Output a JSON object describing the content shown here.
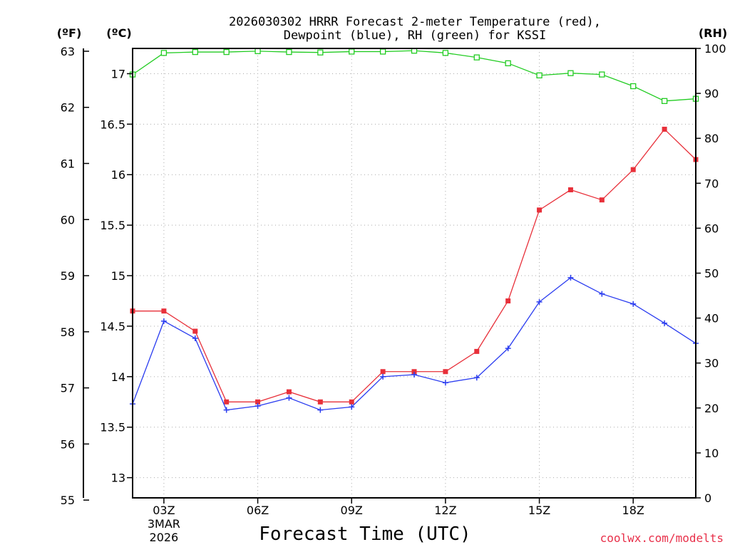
{
  "chart_data": {
    "type": "line",
    "title_line1": "2026030302 HRRR Forecast 2-meter Temperature (red),",
    "title_line2": "Dewpoint (blue), RH (green) for KSSI",
    "xlabel": "Forecast Time (UTC)",
    "credit": "coolwx.com/modelts",
    "units": {
      "fahrenheit": "(ºF)",
      "celsius": "(ºC)",
      "rh": "(RH)"
    },
    "x_hours": [
      2,
      3,
      4,
      5,
      6,
      7,
      8,
      9,
      10,
      11,
      12,
      13,
      14,
      15,
      16,
      17,
      18,
      19,
      20
    ],
    "xlim": [
      2,
      20
    ],
    "x_ticks": [
      {
        "hour": 3,
        "label": "03Z",
        "sub1": "3MAR",
        "sub2": "2026"
      },
      {
        "hour": 6,
        "label": "06Z"
      },
      {
        "hour": 9,
        "label": "09Z"
      },
      {
        "hour": 12,
        "label": "12Z"
      },
      {
        "hour": 15,
        "label": "15Z"
      },
      {
        "hour": 18,
        "label": "18Z"
      }
    ],
    "celsius_axis": {
      "min": 12.8,
      "max": 17.25,
      "ticks": [
        "13",
        "13.5",
        "14",
        "14.5",
        "15",
        "15.5",
        "16",
        "16.5",
        "17"
      ]
    },
    "fahrenheit_axis": {
      "min": 55.04,
      "max": 63.05,
      "ticks": [
        "55",
        "56",
        "57",
        "58",
        "59",
        "60",
        "61",
        "62",
        "63"
      ]
    },
    "rh_axis": {
      "min": 0,
      "max": 100,
      "ticks": [
        "0",
        "10",
        "20",
        "30",
        "40",
        "50",
        "60",
        "70",
        "80",
        "90",
        "100"
      ]
    },
    "colors": {
      "temperature": "#e8303a",
      "dewpoint": "#2a3cf0",
      "rh": "#22cc22",
      "grid": "#aaaaaa",
      "credit": "#e8304a"
    },
    "series": [
      {
        "name": "Temperature",
        "axis": "celsius",
        "values": [
          14.65,
          14.65,
          14.45,
          13.75,
          13.75,
          13.85,
          13.75,
          13.75,
          14.05,
          14.05,
          14.05,
          14.25,
          14.75,
          15.65,
          15.85,
          15.75,
          16.05,
          16.45,
          16.15
        ]
      },
      {
        "name": "Dewpoint",
        "axis": "celsius",
        "values": [
          13.73,
          14.55,
          14.38,
          13.67,
          13.71,
          13.79,
          13.67,
          13.7,
          14.0,
          14.02,
          13.94,
          13.99,
          14.28,
          14.74,
          14.98,
          14.82,
          14.72,
          14.53,
          14.33
        ]
      },
      {
        "name": "RH",
        "axis": "rh",
        "values": [
          94.2,
          99.0,
          99.2,
          99.2,
          99.4,
          99.2,
          99.1,
          99.3,
          99.3,
          99.5,
          99.0,
          98.0,
          96.7,
          94.0,
          94.5,
          94.2,
          91.6,
          88.3,
          88.8
        ]
      }
    ]
  }
}
